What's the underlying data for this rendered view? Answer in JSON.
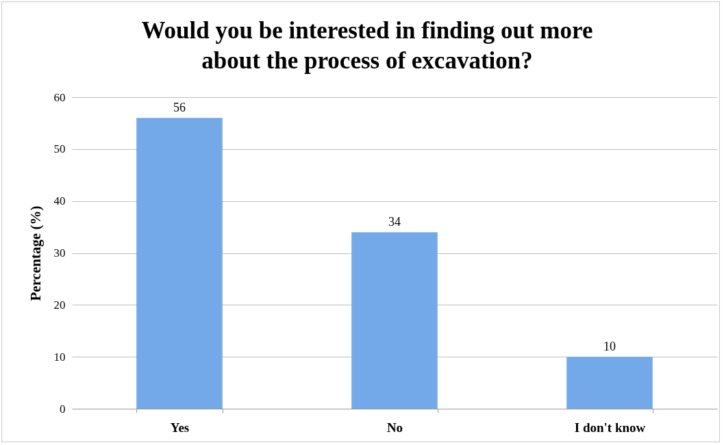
{
  "chart_data": {
    "type": "bar",
    "title": "Would you be interested in finding out more about the process of excavation?",
    "ylabel": "Percentage (%)",
    "categories": [
      "Yes",
      "No",
      "I don't know"
    ],
    "values": [
      56,
      34,
      10
    ],
    "color": "#74a9e9",
    "ylim": [
      0,
      60
    ],
    "yticks": [
      0,
      10,
      20,
      30,
      40,
      50,
      60
    ],
    "grid": "y",
    "data_labels": true
  }
}
